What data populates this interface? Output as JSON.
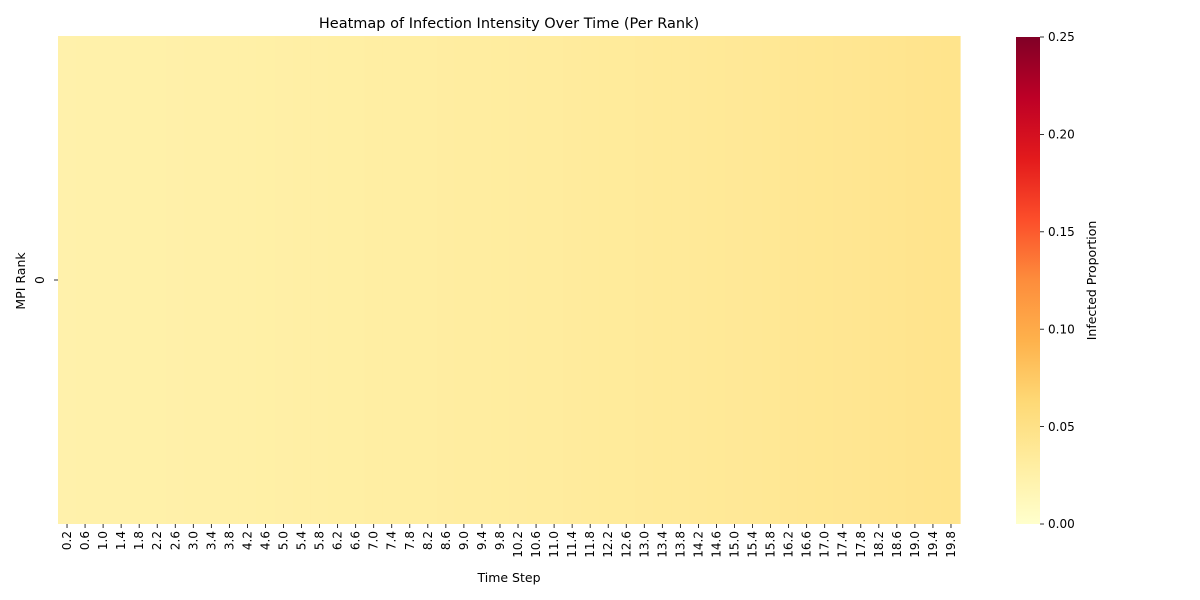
{
  "chart_data": {
    "type": "heatmap",
    "title": "Heatmap of Infection Intensity Over Time (Per Rank)",
    "xlabel": "Time Step",
    "ylabel": "MPI Rank",
    "x_tick_labels": [
      "0.2",
      "0.6",
      "1.0",
      "1.4",
      "1.8",
      "2.2",
      "2.6",
      "3.0",
      "3.4",
      "3.8",
      "4.2",
      "4.6",
      "5.0",
      "5.4",
      "5.8",
      "6.2",
      "6.6",
      "7.0",
      "7.4",
      "7.8",
      "8.2",
      "8.6",
      "9.0",
      "9.4",
      "9.8",
      "10.2",
      "10.6",
      "11.0",
      "11.4",
      "11.8",
      "12.2",
      "12.6",
      "13.0",
      "13.4",
      "13.8",
      "14.2",
      "14.6",
      "15.0",
      "15.4",
      "15.8",
      "16.2",
      "16.6",
      "17.0",
      "17.4",
      "17.8",
      "18.2",
      "18.6",
      "19.0",
      "19.4",
      "19.8"
    ],
    "rows": [
      "0"
    ],
    "values": [
      [
        0.0235,
        0.0238,
        0.024,
        0.0243,
        0.0246,
        0.0249,
        0.0252,
        0.0255,
        0.0258,
        0.0261,
        0.0264,
        0.0267,
        0.0271,
        0.0274,
        0.0278,
        0.0281,
        0.0285,
        0.0289,
        0.0293,
        0.0297,
        0.0301,
        0.0305,
        0.0309,
        0.0313,
        0.0318,
        0.0322,
        0.0327,
        0.0331,
        0.0336,
        0.0341,
        0.0346,
        0.0351,
        0.0356,
        0.0361,
        0.0366,
        0.0372,
        0.0377,
        0.0383,
        0.0389,
        0.0395,
        0.0401,
        0.0407,
        0.0413,
        0.0419,
        0.0426,
        0.0432,
        0.0439,
        0.0446,
        0.0453,
        0.046
      ]
    ],
    "colorbar": {
      "label": "Infected Proportion",
      "range": [
        0,
        0.25
      ],
      "tick_labels": [
        "0.00",
        "0.05",
        "0.10",
        "0.15",
        "0.20",
        "0.25"
      ],
      "tick_values": [
        0,
        0.05,
        0.1,
        0.15,
        0.2,
        0.25
      ],
      "colormap": "YlOrRd",
      "colors": [
        "#ffffcc",
        "#ffeda0",
        "#fed976",
        "#feb24c",
        "#fd8d3c",
        "#fc4e2a",
        "#e31a1c",
        "#bd0026",
        "#800026"
      ]
    },
    "grid": false
  }
}
